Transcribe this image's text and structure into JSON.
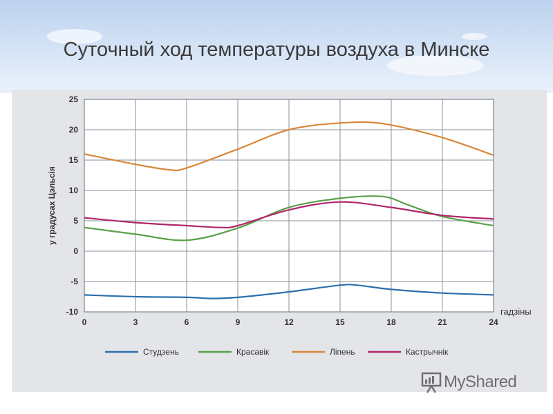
{
  "slide": {
    "title": "Суточный ход температуры воздуха в Минске",
    "watermark": "MyShared"
  },
  "chart_data": {
    "type": "line",
    "title": "",
    "ylabel": "у градусах Цэльсія",
    "xlabel": "гадзіны",
    "xlim": [
      0,
      24
    ],
    "ylim": [
      -10,
      25
    ],
    "x_ticks": [
      0,
      3,
      6,
      9,
      12,
      15,
      18,
      21,
      24
    ],
    "y_ticks": [
      -10,
      -5,
      0,
      5,
      10,
      15,
      20,
      25
    ],
    "grid": true,
    "legend_position": "bottom",
    "series": [
      {
        "name": "Студзень",
        "color": "#2a6fad",
        "points": [
          [
            0,
            -7.2
          ],
          [
            3,
            -7.5
          ],
          [
            6,
            -7.6
          ],
          [
            7.5,
            -7.8
          ],
          [
            9,
            -7.6
          ],
          [
            12,
            -6.7
          ],
          [
            15,
            -5.6
          ],
          [
            16,
            -5.6
          ],
          [
            18,
            -6.3
          ],
          [
            21,
            -6.9
          ],
          [
            24,
            -7.2
          ]
        ]
      },
      {
        "name": "Красавік",
        "color": "#5aa04a",
        "points": [
          [
            0,
            3.9
          ],
          [
            3,
            2.8
          ],
          [
            6,
            1.8
          ],
          [
            9,
            3.8
          ],
          [
            12,
            7.2
          ],
          [
            15,
            8.7
          ],
          [
            17.5,
            9.0
          ],
          [
            19,
            7.6
          ],
          [
            21,
            5.7
          ],
          [
            24,
            4.2
          ]
        ]
      },
      {
        "name": "Ліпень",
        "color": "#d9873a",
        "points": [
          [
            0,
            16.0
          ],
          [
            3,
            14.3
          ],
          [
            5,
            13.4
          ],
          [
            6,
            13.7
          ],
          [
            9,
            16.8
          ],
          [
            12,
            20.0
          ],
          [
            15,
            21.1
          ],
          [
            17.5,
            21.0
          ],
          [
            21,
            18.7
          ],
          [
            24,
            15.8
          ]
        ]
      },
      {
        "name": "Кастрычнік",
        "color": "#b0266a",
        "points": [
          [
            0,
            5.5
          ],
          [
            3,
            4.7
          ],
          [
            6,
            4.2
          ],
          [
            8,
            3.9
          ],
          [
            9,
            4.2
          ],
          [
            12,
            6.8
          ],
          [
            15,
            8.1
          ],
          [
            18,
            7.2
          ],
          [
            21,
            5.9
          ],
          [
            24,
            5.3
          ]
        ]
      }
    ]
  }
}
